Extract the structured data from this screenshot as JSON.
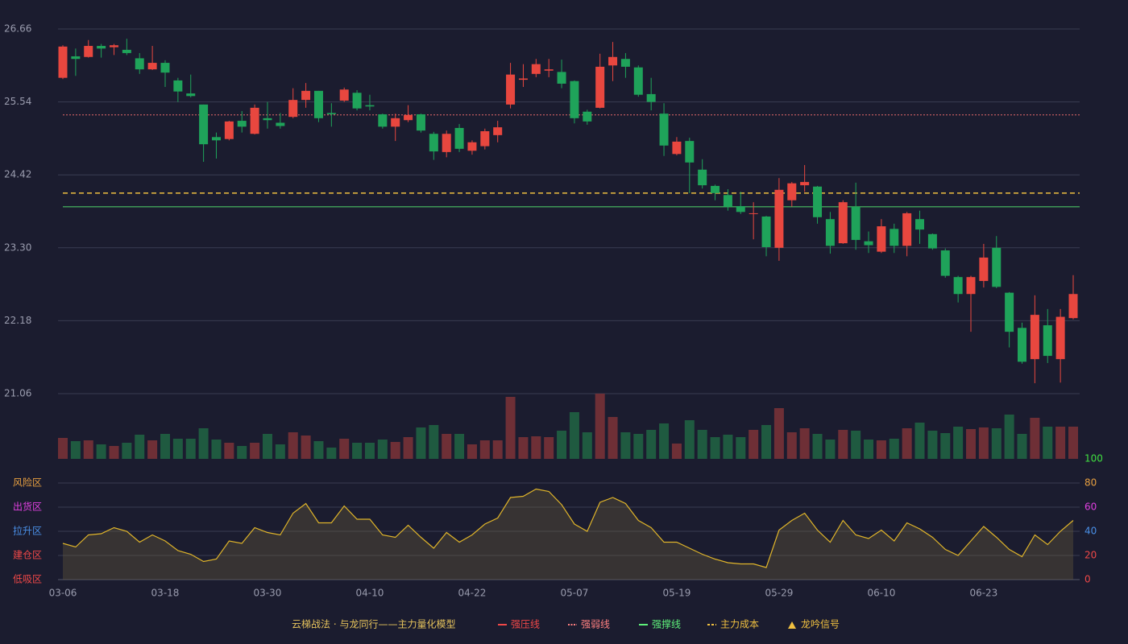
{
  "chart_data": [
    {
      "type": "candlestick",
      "categories": [
        "03-06",
        null,
        null,
        null,
        null,
        null,
        null,
        null,
        "03-18",
        null,
        null,
        null,
        null,
        null,
        null,
        null,
        "03-30",
        null,
        null,
        null,
        null,
        null,
        null,
        null,
        "04-10",
        null,
        null,
        null,
        null,
        null,
        null,
        null,
        "04-22",
        null,
        null,
        null,
        null,
        null,
        null,
        null,
        "05-07",
        null,
        null,
        null,
        null,
        null,
        null,
        null,
        "05-19",
        null,
        null,
        null,
        null,
        null,
        null,
        null,
        "05-29",
        null,
        null,
        null,
        null,
        null,
        null,
        null,
        "06-10",
        null,
        null,
        null,
        null,
        null,
        null,
        null,
        "06-23",
        null,
        null,
        null,
        null,
        null,
        null,
        null
      ],
      "open": [
        25.91,
        26.24,
        26.23,
        26.4,
        26.38,
        26.34,
        26.21,
        26.04,
        26.14,
        25.87,
        25.67,
        25.5,
        25.0,
        24.97,
        25.25,
        25.05,
        25.29,
        25.22,
        25.31,
        25.57,
        25.71,
        25.37,
        25.56,
        25.68,
        25.49,
        25.35,
        25.16,
        25.26,
        25.35,
        25.05,
        24.77,
        25.14,
        24.79,
        24.86,
        25.03,
        25.5,
        25.88,
        25.97,
        26.02,
        26.0,
        25.86,
        25.39,
        25.45,
        26.1,
        26.2,
        26.07,
        25.66,
        25.36,
        24.74,
        24.94,
        24.5,
        24.25,
        24.11,
        23.94,
        23.82,
        23.78,
        23.3,
        24.03,
        24.26,
        24.24,
        23.74,
        23.37,
        23.93,
        23.4,
        23.24,
        23.59,
        23.33,
        23.74,
        23.51,
        23.26,
        22.85,
        22.59,
        22.79,
        23.3,
        22.61,
        22.07,
        21.59,
        22.11,
        21.59,
        22.22
      ],
      "high": [
        26.41,
        26.36,
        26.49,
        26.43,
        26.43,
        26.51,
        26.29,
        26.4,
        26.18,
        25.91,
        25.96,
        25.5,
        25.07,
        25.25,
        25.4,
        25.5,
        25.54,
        25.37,
        25.75,
        25.83,
        25.71,
        25.52,
        25.76,
        25.72,
        25.65,
        25.36,
        25.36,
        25.49,
        25.36,
        25.08,
        25.1,
        25.2,
        24.95,
        25.13,
        25.25,
        26.14,
        26.12,
        26.2,
        26.2,
        26.19,
        25.87,
        25.42,
        26.28,
        26.46,
        26.29,
        26.1,
        25.91,
        25.52,
        25.0,
        24.99,
        24.66,
        24.27,
        24.2,
        24.16,
        24.0,
        23.79,
        24.37,
        24.31,
        24.57,
        24.25,
        23.85,
        24.03,
        24.3,
        23.55,
        23.74,
        23.67,
        23.85,
        23.87,
        23.52,
        23.29,
        22.87,
        22.87,
        23.36,
        23.48,
        22.62,
        22.15,
        22.57,
        22.36,
        22.36,
        22.88
      ],
      "low": [
        25.89,
        25.94,
        26.22,
        26.22,
        26.26,
        26.26,
        25.97,
        26.03,
        25.77,
        25.54,
        25.61,
        24.62,
        24.67,
        24.95,
        25.07,
        25.04,
        25.13,
        25.13,
        25.29,
        25.45,
        25.23,
        25.16,
        25.54,
        25.41,
        25.41,
        25.13,
        24.94,
        25.23,
        25.07,
        24.65,
        24.69,
        24.77,
        24.73,
        24.81,
        24.92,
        25.44,
        25.77,
        25.92,
        25.92,
        25.75,
        25.21,
        25.19,
        25.44,
        25.86,
        25.91,
        25.62,
        25.41,
        24.71,
        24.72,
        24.14,
        24.21,
        24.03,
        23.87,
        23.82,
        23.43,
        23.17,
        23.1,
        23.93,
        24.16,
        23.67,
        23.21,
        23.36,
        23.27,
        23.22,
        23.22,
        23.22,
        23.17,
        23.36,
        23.27,
        22.84,
        22.46,
        22.01,
        22.69,
        22.68,
        21.77,
        21.52,
        21.22,
        21.53,
        21.23,
        22.2
      ],
      "close": [
        26.39,
        26.2,
        26.4,
        26.36,
        26.41,
        26.29,
        26.04,
        26.14,
        25.99,
        25.7,
        25.63,
        24.89,
        24.95,
        25.24,
        25.16,
        25.45,
        25.26,
        25.17,
        25.57,
        25.71,
        25.29,
        25.35,
        25.73,
        25.44,
        25.47,
        25.16,
        25.29,
        25.34,
        25.1,
        24.78,
        25.05,
        24.82,
        24.92,
        25.09,
        25.15,
        25.96,
        25.9,
        26.12,
        26.04,
        25.82,
        25.29,
        25.24,
        26.08,
        26.23,
        26.08,
        25.65,
        25.54,
        24.87,
        24.93,
        24.61,
        24.26,
        24.14,
        23.93,
        23.85,
        23.83,
        23.31,
        24.19,
        24.29,
        24.31,
        23.77,
        23.33,
        24.0,
        23.42,
        23.34,
        23.63,
        23.33,
        23.83,
        23.58,
        23.29,
        22.87,
        22.59,
        22.85,
        23.15,
        22.7,
        22.01,
        21.55,
        22.27,
        21.64,
        22.24,
        22.59
      ],
      "up_color": "#e8473f",
      "down_color": "#1fa35a",
      "ylim": [
        21.06,
        26.66
      ],
      "yticks": [
        21.06,
        22.18,
        {
          "value": 23.3,
          "label": "23.30"
        },
        24.42,
        25.54,
        26.66
      ],
      "grid": true,
      "reference_lines": [
        {
          "value": 25.34,
          "color": "#e86a6a",
          "style": "dotted"
        },
        {
          "value": 24.14,
          "color": "#f0c040",
          "style": "dashed"
        },
        {
          "value": 23.93,
          "color": "#4fd86a",
          "style": "solid"
        }
      ]
    },
    {
      "type": "bar",
      "values": [
        26,
        22,
        23,
        18,
        16,
        20,
        30,
        23,
        31,
        25,
        25,
        38,
        24,
        20,
        16,
        20,
        31,
        18,
        33,
        29,
        22,
        14,
        25,
        20,
        20,
        24,
        21,
        27,
        39,
        42,
        31,
        31,
        18,
        23,
        23,
        77,
        27,
        28,
        27,
        35,
        58,
        33,
        81,
        52,
        33,
        31,
        36,
        44,
        19,
        48,
        36,
        27,
        30,
        27,
        36,
        42,
        63,
        33,
        38,
        31,
        24,
        36,
        35,
        24,
        23,
        25,
        38,
        45,
        35,
        32,
        40,
        37,
        39,
        38,
        55,
        31,
        51,
        40,
        40,
        40
      ],
      "up_color": "#6e2f36",
      "down_color": "#1f5a40"
    },
    {
      "type": "line",
      "values": [
        30,
        27,
        37,
        38,
        43,
        40,
        31,
        37,
        32,
        24,
        21,
        15,
        17,
        32,
        30,
        43,
        39,
        37,
        55,
        63,
        47,
        47,
        61,
        50,
        50,
        37,
        35,
        45,
        35,
        26,
        39,
        31,
        37,
        46,
        51,
        68,
        69,
        75,
        73,
        62,
        46,
        40,
        64,
        68,
        63,
        49,
        43,
        31,
        31,
        26,
        21,
        17,
        14,
        13,
        13,
        10,
        41,
        49,
        55,
        41,
        31,
        49,
        37,
        34,
        41,
        32,
        47,
        42,
        35,
        25,
        20,
        32,
        44,
        35,
        25,
        19,
        37,
        29,
        40,
        49
      ],
      "color": "#e0b52a",
      "ylim": [
        0,
        100
      ],
      "yticks": [
        0,
        20,
        40,
        60,
        80,
        100
      ],
      "tick_colors": [
        "#f04848",
        "#f04848",
        "#4a90e8",
        "#e040e0",
        "#e8a040",
        "#40e040"
      ],
      "zones": [
        {
          "label": "风险区",
          "value": 80,
          "color": "#e8a040"
        },
        {
          "label": "出货区",
          "value": 60,
          "color": "#e040e0"
        },
        {
          "label": "拉升区",
          "value": 40,
          "color": "#4a90e8"
        },
        {
          "label": "建仓区",
          "value": 20,
          "color": "#f04848"
        },
        {
          "label": "低吸区",
          "value": 0,
          "color": "#f04848"
        }
      ]
    }
  ],
  "legend": {
    "title": "云梯战法 · 与龙同行——主力量化模型",
    "items": [
      {
        "name": "强压线",
        "color": "#f04848",
        "style": "solid"
      },
      {
        "name": "强弱线",
        "color": "#ff8080",
        "style": "dotted"
      },
      {
        "name": "强撑线",
        "color": "#5ef07a",
        "style": "solid"
      },
      {
        "name": "主力成本",
        "color": "#f0c040",
        "style": "dashed"
      },
      {
        "name": "龙吟信号",
        "color": "#f0c040",
        "style": "triangle"
      }
    ]
  }
}
